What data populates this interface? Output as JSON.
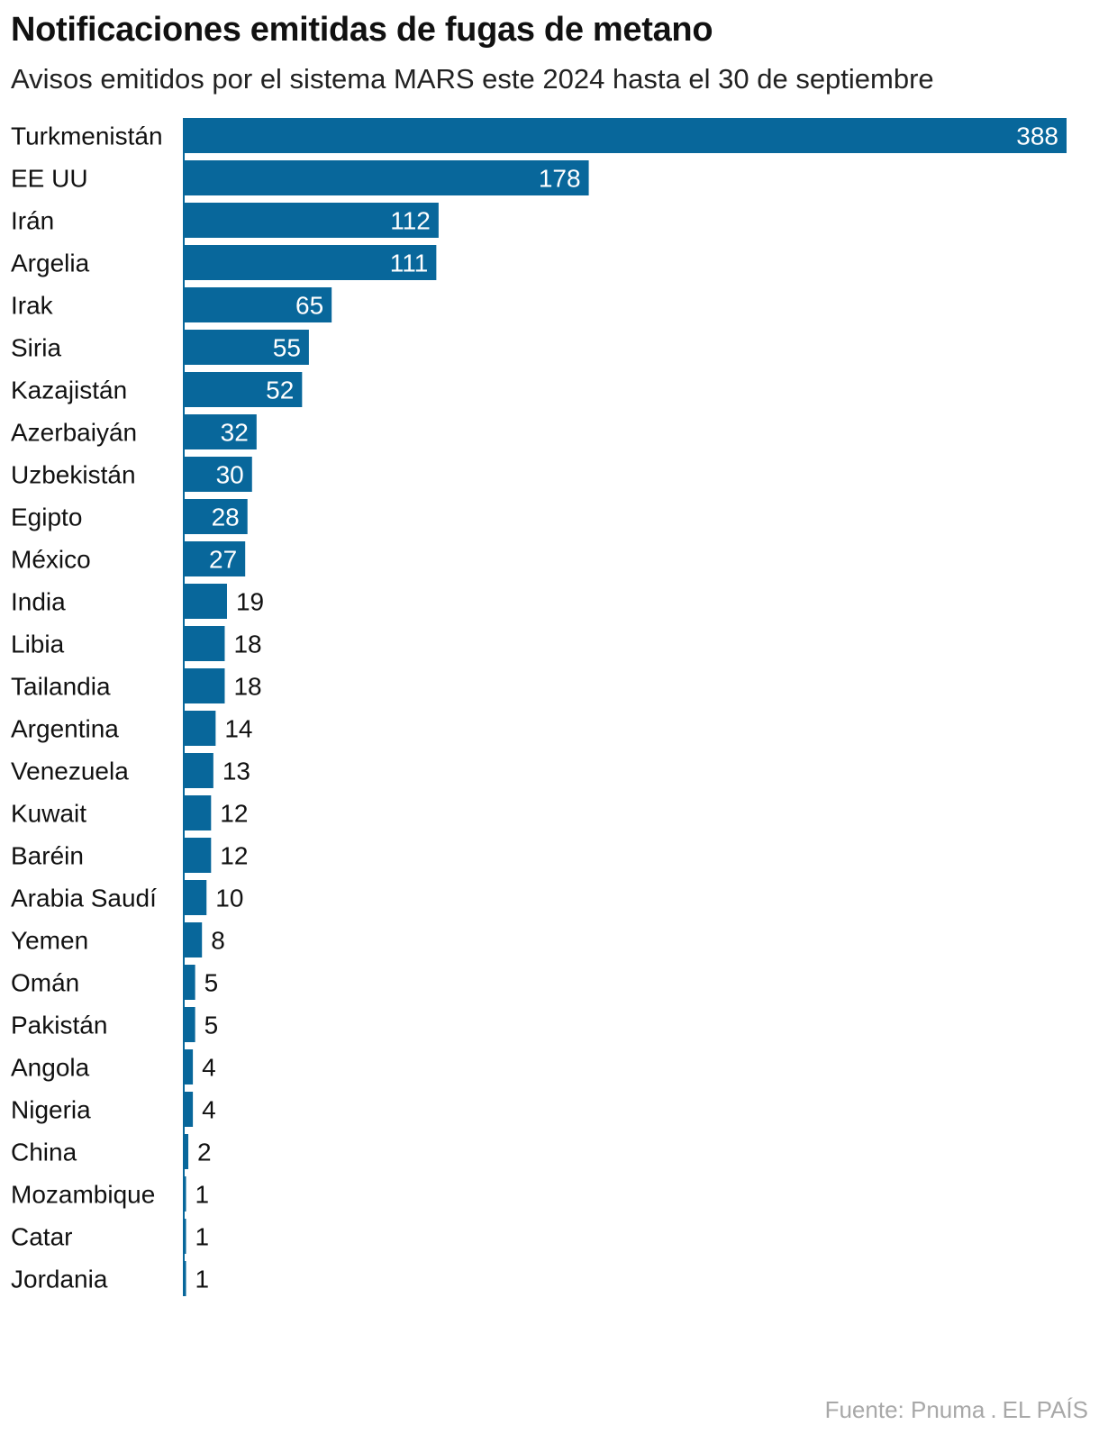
{
  "chart_data": {
    "type": "bar",
    "orientation": "horizontal",
    "title": "Notificaciones emitidas de fugas de metano",
    "subtitle": "Avisos emitidos por el sistema MARS este 2024 hasta el 30 de septiembre",
    "categories": [
      "Turkmenistán",
      "EE UU",
      "Irán",
      "Argelia",
      "Irak",
      "Siria",
      "Kazajistán",
      "Azerbaiyán",
      "Uzbekistán",
      "Egipto",
      "México",
      "India",
      "Libia",
      "Tailandia",
      "Argentina",
      "Venezuela",
      "Kuwait",
      "Baréin",
      "Arabia Saudí",
      "Yemen",
      "Omán",
      "Pakistán",
      "Angola",
      "Nigeria",
      "China",
      "Mozambique",
      "Catar",
      "Jordania"
    ],
    "values": [
      388,
      178,
      112,
      111,
      65,
      55,
      52,
      32,
      30,
      28,
      27,
      19,
      18,
      18,
      14,
      13,
      12,
      12,
      10,
      8,
      5,
      5,
      4,
      4,
      2,
      1,
      1,
      1
    ],
    "xlim": [
      0,
      388
    ],
    "bar_color": "#08679b",
    "grid": false,
    "legend": "none"
  },
  "source": {
    "label": "Fuente: Pnuma",
    "separator": ".",
    "publisher": "EL PAÍS"
  }
}
